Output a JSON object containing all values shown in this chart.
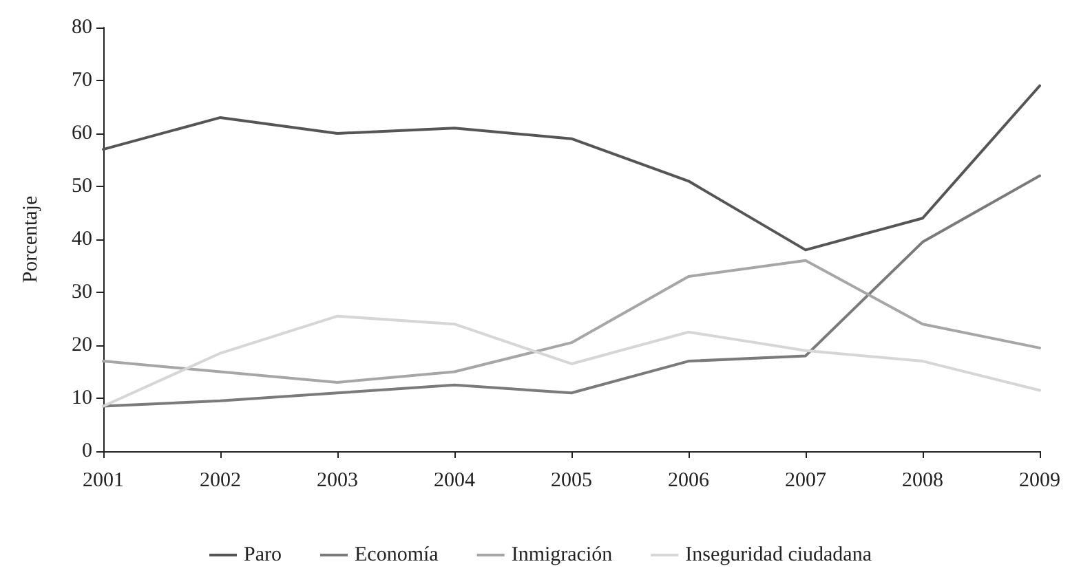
{
  "chart_data": {
    "type": "line",
    "ylabel": "Porcentaje",
    "categories": [
      "2001",
      "2002",
      "2003",
      "2004",
      "2005",
      "2006",
      "2007",
      "2008",
      "2009"
    ],
    "series": [
      {
        "name": "Paro",
        "color": "#555555",
        "values": [
          57,
          63,
          60,
          61,
          59,
          51,
          38,
          44,
          69
        ]
      },
      {
        "name": "Economía",
        "color": "#7a7a7a",
        "values": [
          8.5,
          9.5,
          11,
          12.5,
          11,
          17,
          18,
          39.5,
          52
        ]
      },
      {
        "name": "Inmigración",
        "color": "#a6a6a6",
        "values": [
          17,
          15,
          13,
          15,
          20.5,
          33,
          36,
          24,
          19.5
        ]
      },
      {
        "name": "Inseguridad ciudadana",
        "color": "#d6d6d6",
        "values": [
          8.5,
          18.5,
          25.5,
          24,
          16.5,
          22.5,
          19,
          17,
          11.5
        ]
      }
    ],
    "ylim": [
      0,
      80
    ],
    "yticks": [
      0,
      10,
      20,
      30,
      40,
      50,
      60,
      70,
      80
    ],
    "grid": false,
    "legend": "bottom",
    "marker": "none",
    "line_style": "solid"
  }
}
